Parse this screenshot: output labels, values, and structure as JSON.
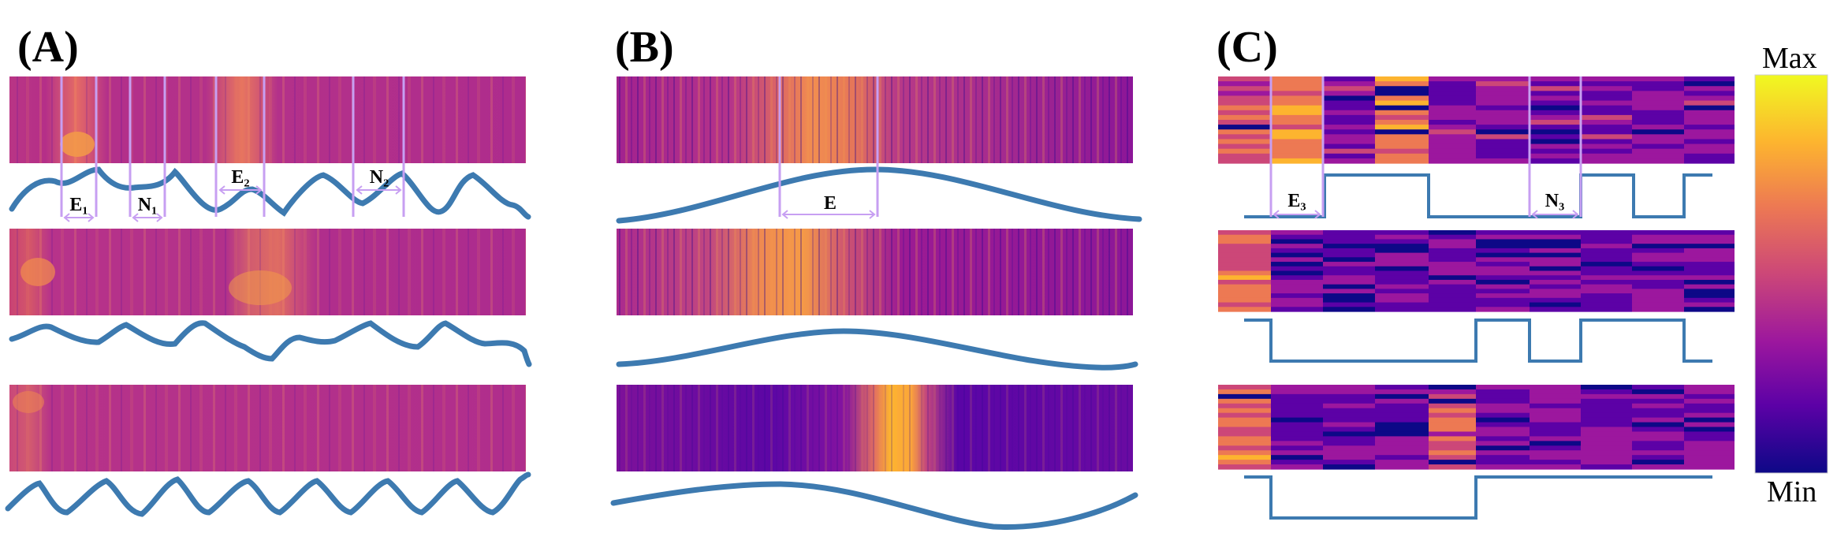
{
  "panels": {
    "a": {
      "label": "(A)",
      "markers": {
        "e1": "E₁",
        "n1": "N₁",
        "e2": "E₂",
        "n2": "N₂"
      }
    },
    "b": {
      "label": "(B)",
      "markers": {
        "e": "E"
      }
    },
    "c": {
      "label": "(C)",
      "markers": {
        "e3": "E₃",
        "n3": "N₃"
      }
    }
  },
  "colorbar": {
    "max_label": "Max",
    "min_label": "Min"
  },
  "colors": {
    "curve": "#3d7ab0",
    "marker": "#c79ff2"
  },
  "colormap": [
    "#0d0887",
    "#5c01a6",
    "#9c179e",
    "#cc4778",
    "#ed7953",
    "#fdb42f",
    "#f0f921"
  ]
}
